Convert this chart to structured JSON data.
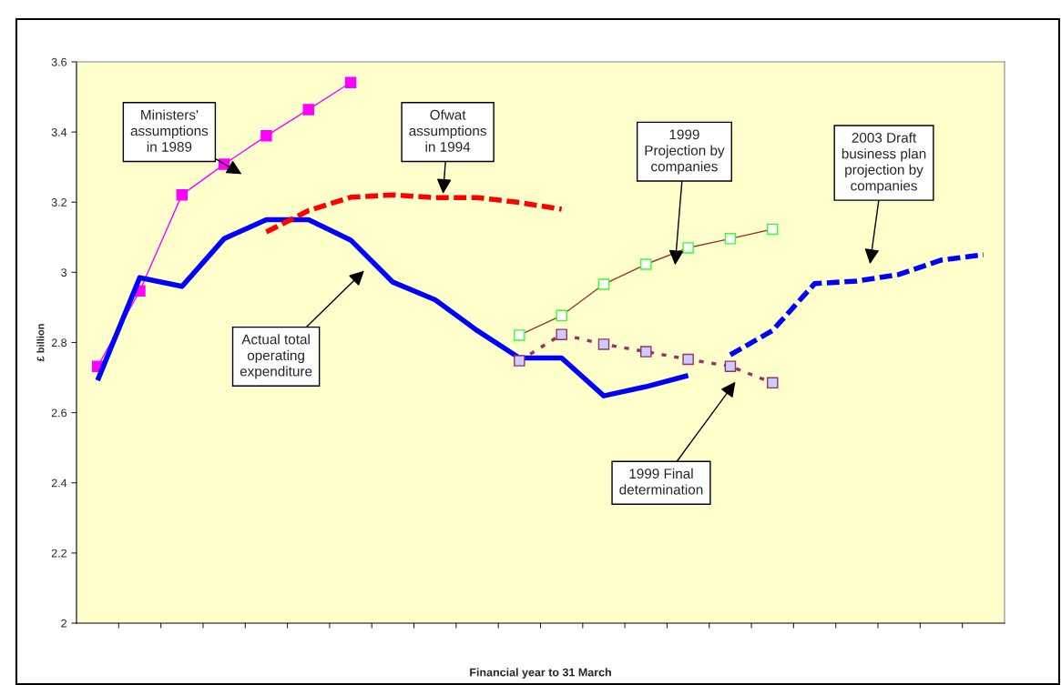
{
  "chart_data": {
    "type": "line",
    "xlabel": "Financial year to 31 March",
    "ylabel": "£ billion",
    "categories": [
      null,
      null,
      null,
      null,
      null,
      null,
      null,
      null,
      null,
      null,
      null,
      null,
      null,
      null,
      null,
      null,
      null,
      null,
      null,
      null,
      null,
      null
    ],
    "ylim": [
      2,
      3.6
    ],
    "yticks": [
      2,
      {
        "value": 2.2,
        "label": "2.2"
      },
      {
        "value": 2.4,
        "label": "2.4"
      },
      {
        "value": 2.6,
        "label": "2.6"
      },
      {
        "value": 2.8,
        "label": "2.8"
      },
      3,
      {
        "value": 3.2,
        "label": "3.2"
      },
      {
        "value": 3.4,
        "label": "3.4"
      },
      {
        "value": 3.6,
        "label": "3.6"
      }
    ],
    "grid": false,
    "legend": false,
    "series": [
      {
        "color": "#ff00ff",
        "marker": "square",
        "line_style": "solid",
        "values": [
          2.732,
          2.947,
          3.221,
          3.308,
          3.389,
          3.464,
          3.541,
          null,
          null,
          null,
          null,
          null,
          null,
          null,
          null,
          null,
          null,
          null,
          null,
          null,
          null,
          null
        ]
      },
      {
        "color": "#0000ff",
        "marker": "none",
        "line_style": "solid",
        "values": [
          2.692,
          2.985,
          2.96,
          3.096,
          3.15,
          3.15,
          3.092,
          2.972,
          2.922,
          2.834,
          2.756,
          2.756,
          2.648,
          2.674,
          2.706,
          null,
          null,
          null,
          null,
          null,
          null,
          null
        ]
      },
      {
        "color": "#ff0000",
        "marker": "none",
        "line_style": "dashed",
        "values": [
          null,
          null,
          null,
          null,
          3.115,
          3.176,
          3.214,
          3.221,
          3.213,
          3.213,
          3.199,
          3.18,
          null,
          null,
          null,
          null,
          null,
          null,
          null,
          null,
          null,
          null
        ]
      },
      {
        "color": "#993333",
        "marker": "square",
        "line_style": "solid",
        "values": [
          null,
          null,
          null,
          null,
          null,
          null,
          null,
          null,
          null,
          null,
          2.821,
          2.877,
          2.966,
          3.023,
          3.07,
          3.096,
          3.123,
          null,
          null,
          null,
          null,
          null
        ]
      },
      {
        "color": "#993366",
        "marker": "square",
        "line_style": "dotted",
        "values": [
          null,
          null,
          null,
          null,
          null,
          null,
          null,
          null,
          null,
          null,
          2.748,
          2.823,
          2.795,
          2.774,
          2.752,
          2.732,
          2.685,
          null,
          null,
          null,
          null,
          null
        ]
      },
      {
        "color": "#0000ff",
        "marker": "none",
        "line_style": "dashed",
        "values": [
          null,
          null,
          null,
          null,
          null,
          null,
          null,
          null,
          null,
          null,
          null,
          null,
          null,
          null,
          null,
          2.765,
          2.834,
          2.968,
          2.975,
          2.994,
          3.035,
          3.05
        ]
      }
    ],
    "annotations": [
      "Ministers'\nassumptions\nin 1989",
      "Ofwat\nassumptions\nin 1994",
      "1999\nProjection by\ncompanies",
      "2003 Draft\nbusiness plan\nprojection by\ncompanies",
      "Actual total\noperating\nexpenditure",
      "1999 Final\ndetermination"
    ]
  }
}
